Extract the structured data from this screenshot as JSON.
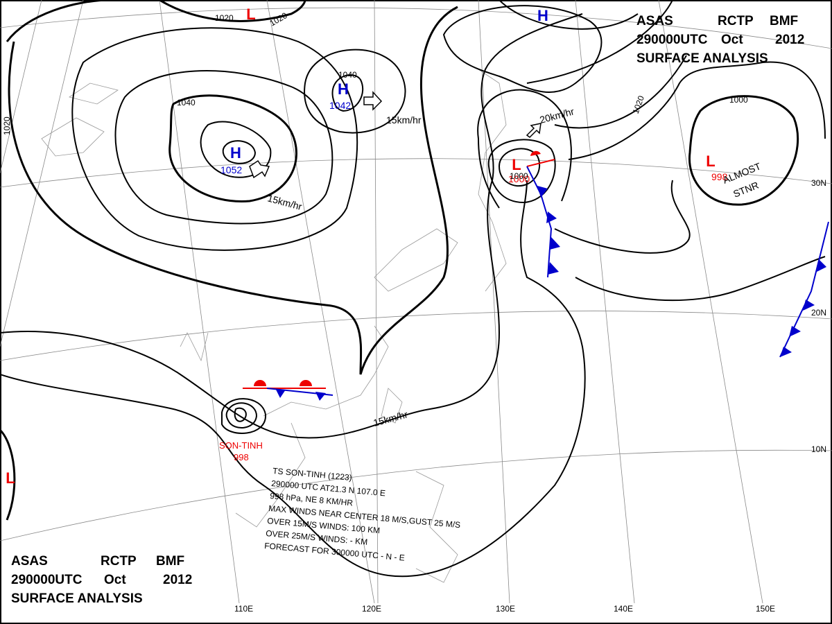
{
  "header": {
    "line1": [
      "ASAS",
      "RCTP",
      "BMF"
    ],
    "line2": [
      "290000UTC",
      "Oct",
      "2012"
    ],
    "line3": "SURFACE ANALYSIS"
  },
  "centers": [
    {
      "letter": "H",
      "pressure": "1052"
    },
    {
      "letter": "H",
      "pressure": "1042"
    },
    {
      "letter": "L",
      "pressure": "1000"
    },
    {
      "letter": "L",
      "pressure": "998"
    },
    {
      "letter": "H"
    },
    {
      "letter": "L"
    },
    {
      "letter": "L"
    }
  ],
  "isobar_labels": [
    "1020",
    "1020",
    "1040",
    "1040",
    "1020",
    "1000",
    "1020",
    "1000"
  ],
  "motions": [
    "15km/hr",
    "15km/hr",
    "20km/hr",
    "15km/hr"
  ],
  "stationary_note": [
    "ALMOST",
    "STNR"
  ],
  "storm": {
    "name": "SON-TINH",
    "pressure": "998"
  },
  "bulletin": [
    "TS SON-TINH (1223)",
    "290000 UTC AT21.3 N 107.0 E",
    "998 hPa, NE 8 KM/HR",
    "MAX WINDS NEAR CENTER 18 M/S,GUST 25 M/S",
    "OVER 15M/S WINDS: 100 KM",
    "OVER 25M/S WINDS: - KM",
    "FORECAST FOR 300000 UTC - N - E"
  ],
  "longitudes": [
    "110E",
    "120E",
    "130E",
    "140E",
    "150E"
  ],
  "latitudes": [
    "30N",
    "20N",
    "10N"
  ]
}
